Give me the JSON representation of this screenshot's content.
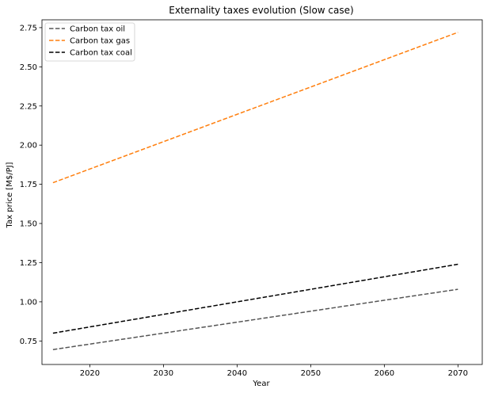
{
  "chart_data": {
    "type": "line",
    "title": "Externality taxes evolution (Slow case)",
    "xlabel": "Year",
    "ylabel": "Tax price [M$/PJ]",
    "xlim": [
      2013.5,
      2073.3
    ],
    "ylim": [
      0.6,
      2.8
    ],
    "xticks": [
      2020,
      2030,
      2040,
      2050,
      2060,
      2070
    ],
    "yticks": [
      0.75,
      1.0,
      1.25,
      1.5,
      1.75,
      2.0,
      2.25,
      2.5,
      2.75
    ],
    "grid": false,
    "legend": "top-left",
    "series": [
      {
        "name": "Carbon tax oil",
        "color": "#555555",
        "dash": "dashed",
        "x": [
          2015,
          2070
        ],
        "y": [
          0.695,
          1.08
        ]
      },
      {
        "name": "Carbon tax gas",
        "color": "#ff7f0e",
        "dash": "dashed",
        "x": [
          2015,
          2070
        ],
        "y": [
          1.76,
          2.72
        ]
      },
      {
        "name": "Carbon tax coal",
        "color": "#000000",
        "dash": "dashed",
        "x": [
          2015,
          2070
        ],
        "y": [
          0.8,
          1.24
        ]
      }
    ]
  }
}
